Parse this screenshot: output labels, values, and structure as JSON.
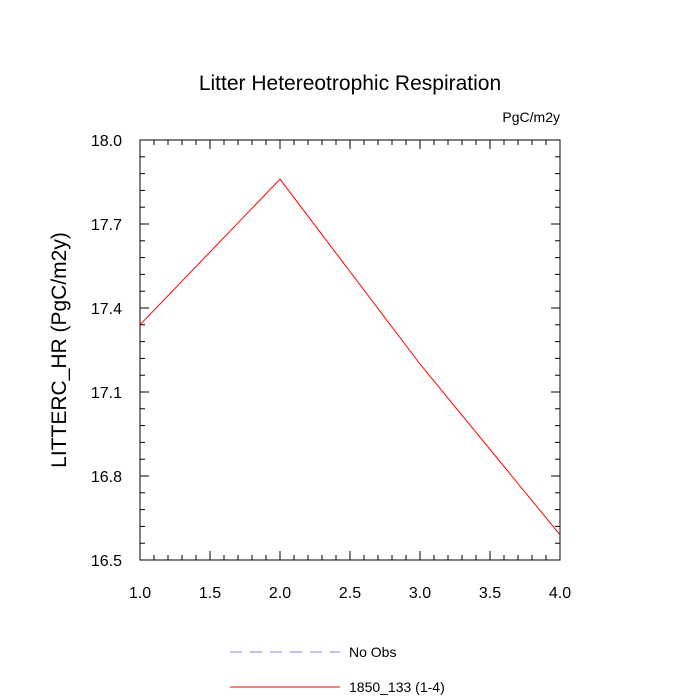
{
  "chart_data": {
    "type": "line",
    "title": "Litter Hetereotrophic Respiration",
    "units_label": "PgC/m2y",
    "ylabel": "LITTERC_HR  (PgC/m2y)",
    "xlabel": "",
    "xlim": [
      1.0,
      4.0
    ],
    "ylim": [
      16.5,
      18.0
    ],
    "x_ticks": [
      1.0,
      1.5,
      2.0,
      2.5,
      3.0,
      3.5,
      4.0
    ],
    "x_tick_labels": [
      "1.0",
      "1.5",
      "2.0",
      "2.5",
      "3.0",
      "3.5",
      "4.0"
    ],
    "y_ticks": [
      16.5,
      16.8,
      17.1,
      17.4,
      17.7,
      18.0
    ],
    "y_tick_labels": [
      "16.5",
      "16.8",
      "17.1",
      "17.4",
      "17.7",
      "18.0"
    ],
    "grid": false,
    "legend_position": "bottom",
    "series": [
      {
        "name": "No Obs",
        "color": "#8a8ae6",
        "dash": "dashed",
        "x": [],
        "y": []
      },
      {
        "name": "1850_133 (1-4)",
        "color": "#ff0000",
        "dash": "solid",
        "x": [
          1.0,
          2.0,
          3.0,
          4.0
        ],
        "y": [
          17.34,
          17.86,
          17.2,
          16.59
        ]
      }
    ]
  }
}
